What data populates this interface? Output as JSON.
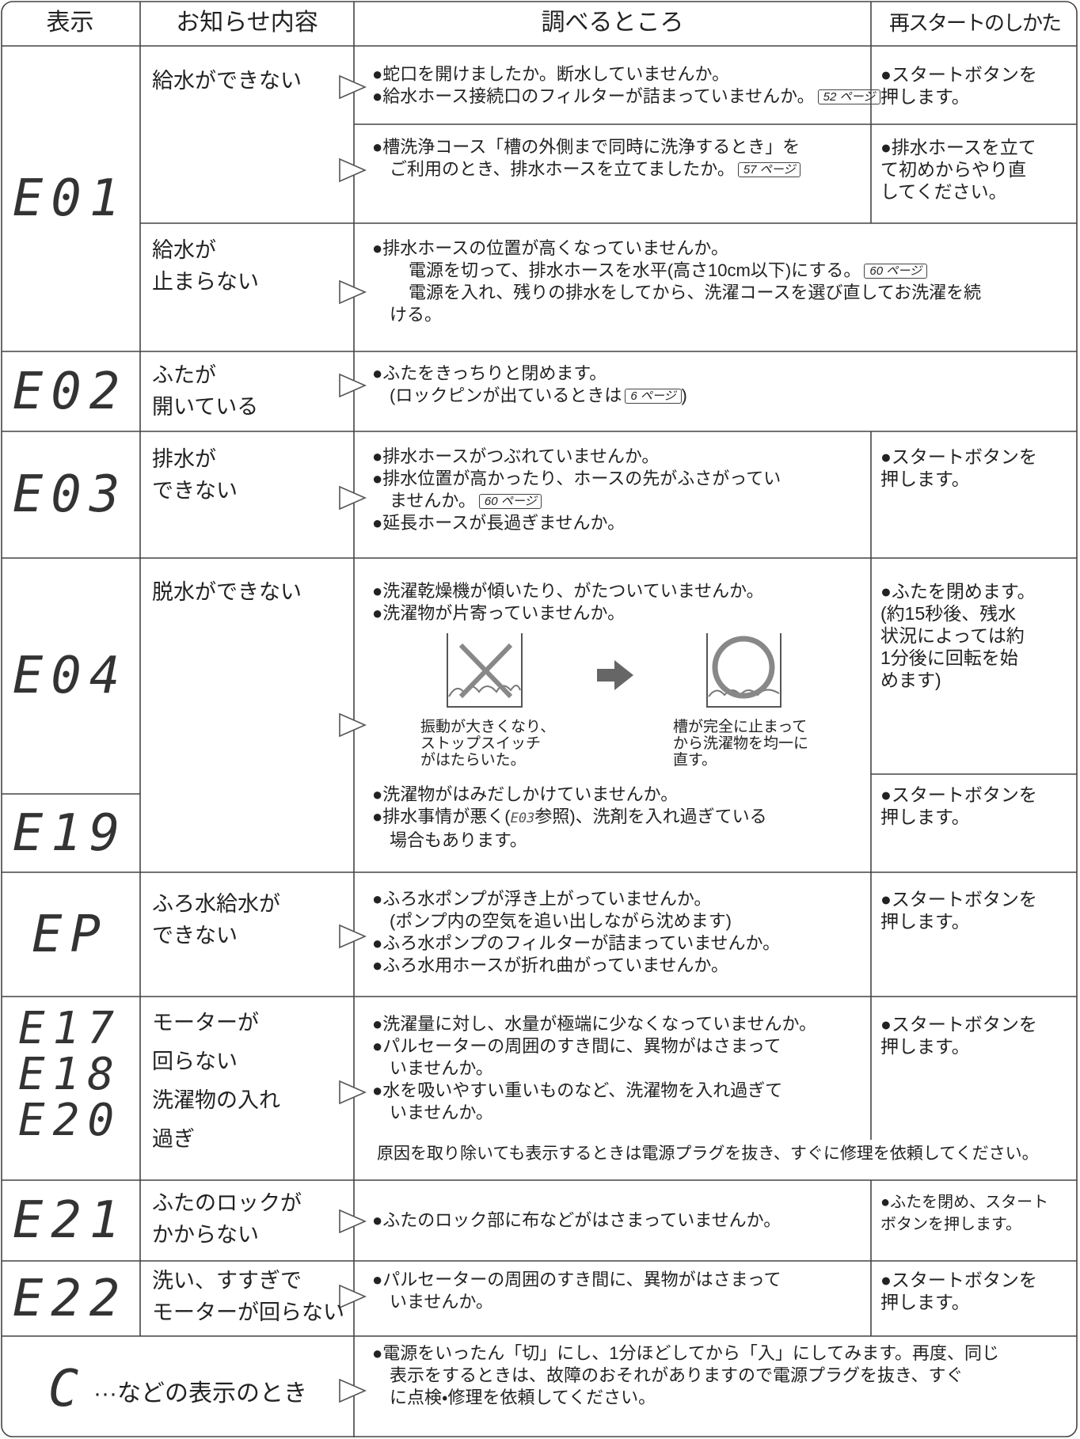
{
  "header": {
    "columns": [
      "表示",
      "お知らせ内容",
      "調べるところ",
      "再スタートのしかた"
    ]
  },
  "rows": [
    {
      "codes": [
        "E01"
      ],
      "items": [
        {
          "cause": "給水ができない",
          "checks": [
            "●蛇口を開けましたか。断水していませんか。",
            {
              "text": "●給水ホース接続口のフィルターが詰まっていませんか。",
              "ref": "52 ページ"
            }
          ],
          "restart": "●スタートボタンを\n押します。"
        },
        {
          "checks": [
            "●槽洗浄コース「槽の外側まで同時に洗浄するとき」を",
            {
              "text": "ご利用のとき、排水ホースを立てましたか。",
              "ref": "57 ページ"
            }
          ],
          "restart": "●排水ホースを立て\nて初めからやり直\nしてください。"
        },
        {
          "cause": "給水が\n止まらない",
          "checks": [
            "●排水ホースの位置が高くなっていませんか。",
            {
              "text": "電源を切って、排水ホースを水平(高さ10cm以下)にする。",
              "ref": "60 ページ"
            },
            "電源を入れ、残りの排水をしてから、洗濯コースを選び直してお洗濯を続",
            "ける。"
          ]
        }
      ]
    },
    {
      "codes": [
        "E02"
      ],
      "items": [
        {
          "cause": "ふたが\n開いている",
          "checks": [
            "●ふたをきっちりと閉めます。",
            {
              "text": "(ロックピンが出ているときは",
              "ref": "6 ページ",
              "tail": ")"
            }
          ]
        }
      ]
    },
    {
      "codes": [
        "E03"
      ],
      "items": [
        {
          "cause": "排水が\nできない",
          "checks": [
            "●排水ホースがつぶれていませんか。",
            "●排水位置が高かったり、ホースの先がふさがってい",
            {
              "text": "ませんか。",
              "ref": "60 ページ"
            },
            "●延長ホースが長過ぎませんか。"
          ],
          "restart": "●スタートボタンを\n押します。"
        }
      ]
    },
    {
      "codes": [
        "E04",
        "E19"
      ],
      "items": [
        {
          "cause": "脱水ができない",
          "checks": [
            "●洗濯乾燥機が傾いたり、がたついていませんか。",
            "●洗濯物が片寄っていませんか。"
          ],
          "captions": [
            "振動が大きくなり、\nストップスイッチ\nがはたらいた。",
            "槽が完全に止まって\nから洗濯物を均一に\n直す。"
          ],
          "restart": "●ふたを閉めます。\n(約15秒後、残水\n状況によっては約\n1分後に回転を始\nめます)"
        },
        {
          "checks": [
            "●洗濯物がはみだしかけていませんか。",
            {
              "text": "●排水事情が悪く(",
              "code": "E03",
              "tail": "参照)、洗剤を入れ過ぎている"
            },
            "場合もあります。"
          ],
          "restart": "●スタートボタンを\n押します。"
        }
      ]
    },
    {
      "codes": [
        "EP"
      ],
      "items": [
        {
          "cause": "ふろ水給水が\nできない",
          "checks": [
            "●ふろ水ポンプが浮き上がっていませんか。",
            "(ポンプ内の空気を追い出しながら沈めます)",
            "●ふろ水ポンプのフィルターが詰まっていませんか。",
            "●ふろ水用ホースが折れ曲がっていませんか。"
          ],
          "restart": "●スタートボタンを\n押します。"
        }
      ]
    },
    {
      "codes": [
        "E17",
        "E18",
        "E20"
      ],
      "items": [
        {
          "cause": "モーターが\n回らない\n洗濯物の入れ\n過ぎ",
          "checks": [
            "●洗濯量に対し、水量が極端に少なくなっていませんか。",
            "●パルセーターの周囲のすき間に、異物がはさまって",
            "いませんか。",
            "●水を吸いやすい重いものなど、洗濯物を入れ過ぎて",
            "いませんか。"
          ],
          "note": "原因を取り除いても表示するときは電源プラグを抜き、すぐに修理を依頼してください。",
          "restart": "●スタートボタンを\n押します。"
        }
      ]
    },
    {
      "codes": [
        "E21"
      ],
      "items": [
        {
          "cause": "ふたのロックが\nかからない",
          "checks": [
            "●ふたのロック部に布などがはさまっていませんか。"
          ],
          "restart": "●ふたを閉め、スタート\nボタンを押します。"
        }
      ]
    },
    {
      "codes": [
        "E22"
      ],
      "items": [
        {
          "cause": "洗い、すすぎで\nモーターが回らない",
          "checks": [
            "●パルセーターの周囲のすき間に、異物がはさまって",
            "いませんか。"
          ],
          "restart": "●スタートボタンを\n押します。"
        }
      ]
    },
    {
      "codes": [
        "C"
      ],
      "label": "···などの表示のとき",
      "items": [
        {
          "checks": [
            "●電源をいったん「切」にし、1分ほどしてから「入」にしてみます。再度、同じ",
            "表示をするときは、故障のおそれがありますので電源プラグを抜き、すぐ",
            "に点検・修理を依頼してください。"
          ]
        }
      ]
    }
  ]
}
